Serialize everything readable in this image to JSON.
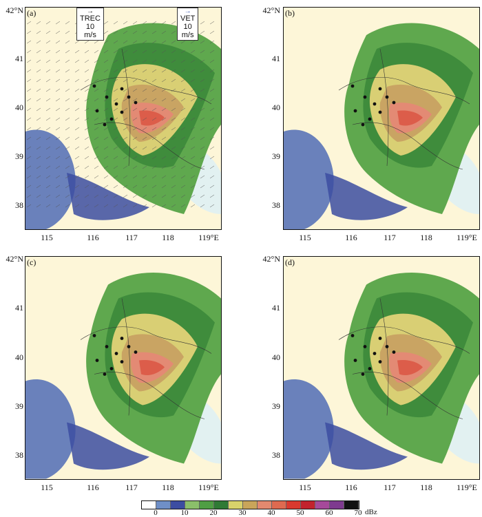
{
  "panels": [
    {
      "id": "a",
      "label": "(a)",
      "legends": [
        "TREC 10 m/s",
        "VET 10 m/s"
      ]
    },
    {
      "id": "b",
      "label": "(b)",
      "legends": []
    },
    {
      "id": "c",
      "label": "(c)",
      "legends": []
    },
    {
      "id": "d",
      "label": "(d)",
      "legends": []
    }
  ],
  "lat_labels": [
    "42°N",
    "41",
    "40",
    "39",
    "38"
  ],
  "lon_labels": [
    "115",
    "116",
    "117",
    "118",
    "119°E"
  ],
  "colorbar": {
    "ticks": [
      "0",
      "10",
      "20",
      "30",
      "40",
      "50",
      "60",
      "70"
    ],
    "unit": "dBz",
    "colors": [
      "#ffffff",
      "#6f8fc7",
      "#3c4da1",
      "#8bbf6a",
      "#4f9e44",
      "#2f7a35",
      "#d8d26b",
      "#c9a55a",
      "#e2896f",
      "#de6a50",
      "#d9392f",
      "#c2232d",
      "#a64a9a",
      "#7e3a8f",
      "#111111"
    ]
  },
  "map_colors": {
    "land": "#fdf6d8",
    "sea": "#e2f1f1",
    "echo_weak": "#5a74b8",
    "echo_dark": "#3c4da1",
    "echo_green": "#5fa84e",
    "echo_deep_green": "#3f8c3c",
    "echo_yellow": "#d9cf74",
    "echo_tan": "#c9a463",
    "echo_pink": "#e38a74",
    "echo_red": "#dc5d4a"
  }
}
